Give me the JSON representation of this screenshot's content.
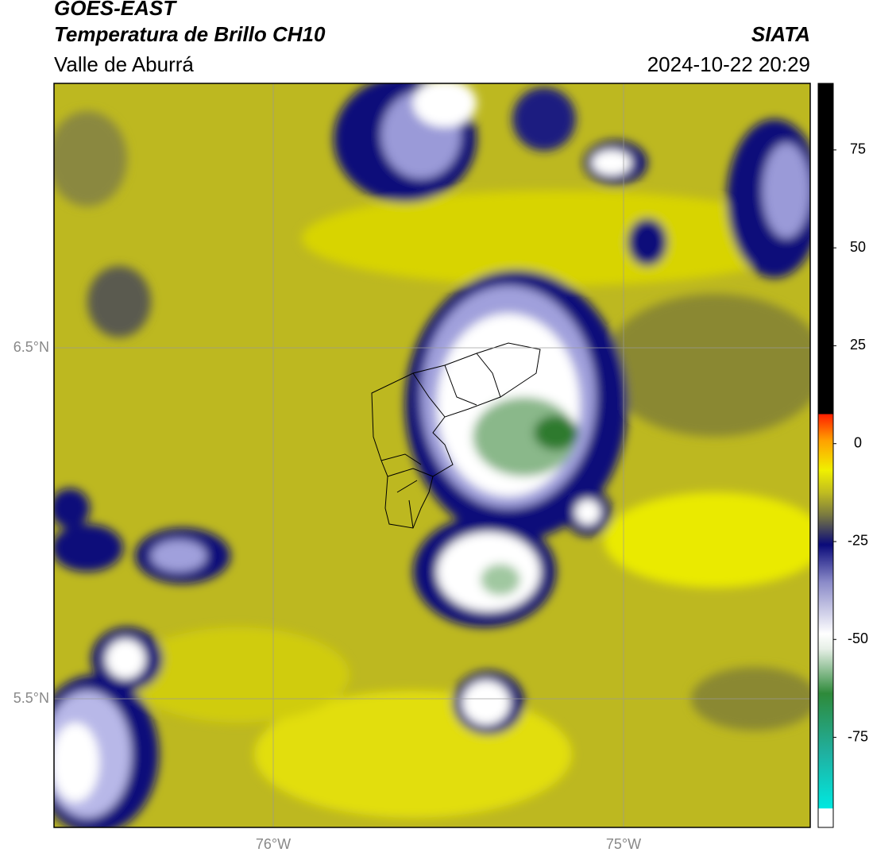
{
  "header": {
    "title": "GOES-EAST",
    "subtitle": "Temperatura de Brillo CH10",
    "region": "Valle de Aburrá",
    "agency": "SIATA",
    "datetime": "2024-10-22 20:29"
  },
  "map": {
    "lat_labels": [
      "6.5°N",
      "5.5°N"
    ],
    "lon_labels": [
      "76°W",
      "75°W"
    ]
  },
  "colorbar": {
    "range": [
      -98,
      92
    ],
    "ticks": [
      75,
      50,
      25,
      0,
      -25,
      -50,
      -75
    ]
  }
}
